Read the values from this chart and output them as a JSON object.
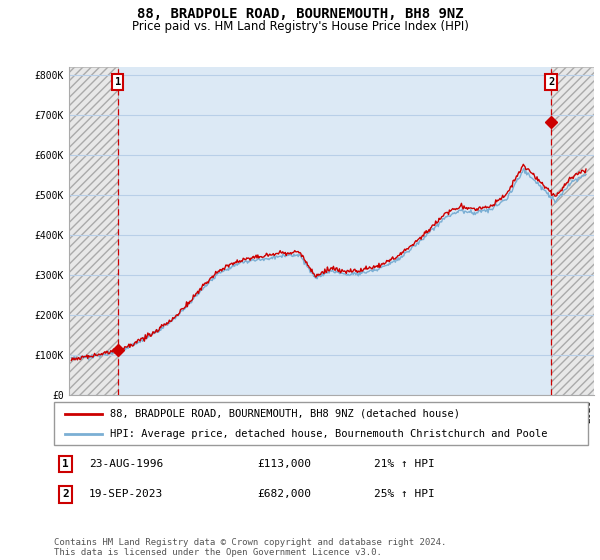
{
  "title": "88, BRADPOLE ROAD, BOURNEMOUTH, BH8 9NZ",
  "subtitle": "Price paid vs. HM Land Registry's House Price Index (HPI)",
  "ylim": [
    0,
    820000
  ],
  "yticks": [
    0,
    100000,
    200000,
    300000,
    400000,
    500000,
    600000,
    700000,
    800000
  ],
  "ytick_labels": [
    "£0",
    "£100K",
    "£200K",
    "£300K",
    "£400K",
    "£500K",
    "£600K",
    "£700K",
    "£800K"
  ],
  "xmin": 1993.6,
  "xmax": 2026.4,
  "sale1_x": 1996.645,
  "sale1_y": 113000,
  "sale2_x": 2023.72,
  "sale2_y": 682000,
  "sale_color": "#cc0000",
  "hpi_color": "#7bafd4",
  "plot_bg_blue": "#dce9f5",
  "hatch_bg": "#e8e8e8",
  "hatch_edge": "#aaaaaa",
  "grid_color": "#b8cfe8",
  "legend_label1": "88, BRADPOLE ROAD, BOURNEMOUTH, BH8 9NZ (detached house)",
  "legend_label2": "HPI: Average price, detached house, Bournemouth Christchurch and Poole",
  "annotation1_date": "23-AUG-1996",
  "annotation1_price": "£113,000",
  "annotation1_hpi": "21% ↑ HPI",
  "annotation2_date": "19-SEP-2023",
  "annotation2_price": "£682,000",
  "annotation2_hpi": "25% ↑ HPI",
  "footer": "Contains HM Land Registry data © Crown copyright and database right 2024.\nThis data is licensed under the Open Government Licence v3.0.",
  "title_fontsize": 10,
  "subtitle_fontsize": 8.5,
  "tick_fontsize": 7,
  "legend_fontsize": 7.5,
  "annot_fontsize": 8,
  "footer_fontsize": 6.5
}
